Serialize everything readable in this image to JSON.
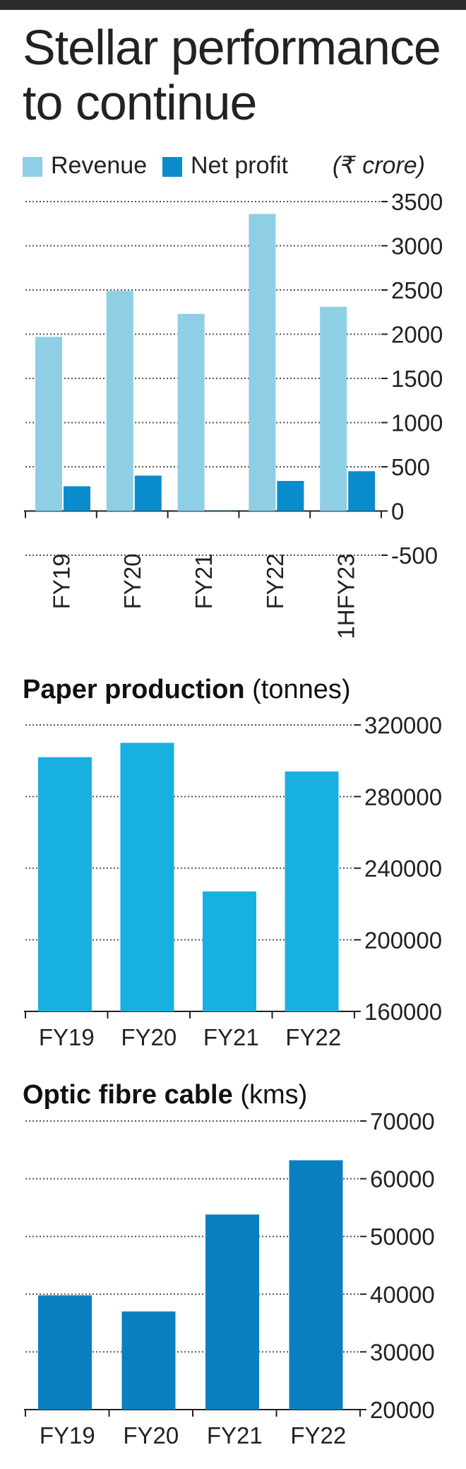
{
  "title": "Stellar performance to continue",
  "colors": {
    "revenue": "#8ecfe6",
    "net_profit": "#0a8ccc",
    "paper": "#18b0e0",
    "fibre": "#0a7fc0",
    "text": "#222222",
    "topbar": "#2b2b2b"
  },
  "chart_data": [
    {
      "type": "bar",
      "title": "Stellar performance to continue",
      "unit": "(₹ crore)",
      "categories": [
        "FY19",
        "FY20",
        "FY21",
        "FY22",
        "1HFY23"
      ],
      "series": [
        {
          "name": "Revenue",
          "values": [
            1970,
            2490,
            2230,
            3360,
            2310
          ]
        },
        {
          "name": "Net profit",
          "values": [
            280,
            400,
            -10,
            340,
            450
          ]
        }
      ],
      "ylim": [
        -500,
        3500
      ],
      "yticks": [
        3500,
        3000,
        2500,
        2000,
        1500,
        1000,
        500,
        0,
        -500
      ],
      "grid": true,
      "legend": "top-left",
      "xlabel_rotation": "vertical"
    },
    {
      "type": "bar",
      "title": "Paper production",
      "unit": "(tonnes)",
      "categories": [
        "FY19",
        "FY20",
        "FY21",
        "FY22"
      ],
      "values": [
        302000,
        310000,
        227000,
        294000
      ],
      "ylim": [
        160000,
        320000
      ],
      "yticks": [
        320000,
        280000,
        240000,
        200000,
        160000
      ],
      "grid": true
    },
    {
      "type": "bar",
      "title": "Optic fibre cable",
      "unit": "(kms)",
      "categories": [
        "FY19",
        "FY20",
        "FY21",
        "FY22"
      ],
      "values": [
        39800,
        37000,
        53800,
        63200
      ],
      "ylim": [
        20000,
        70000
      ],
      "yticks": [
        70000,
        60000,
        50000,
        40000,
        30000,
        20000
      ],
      "grid": true
    }
  ]
}
